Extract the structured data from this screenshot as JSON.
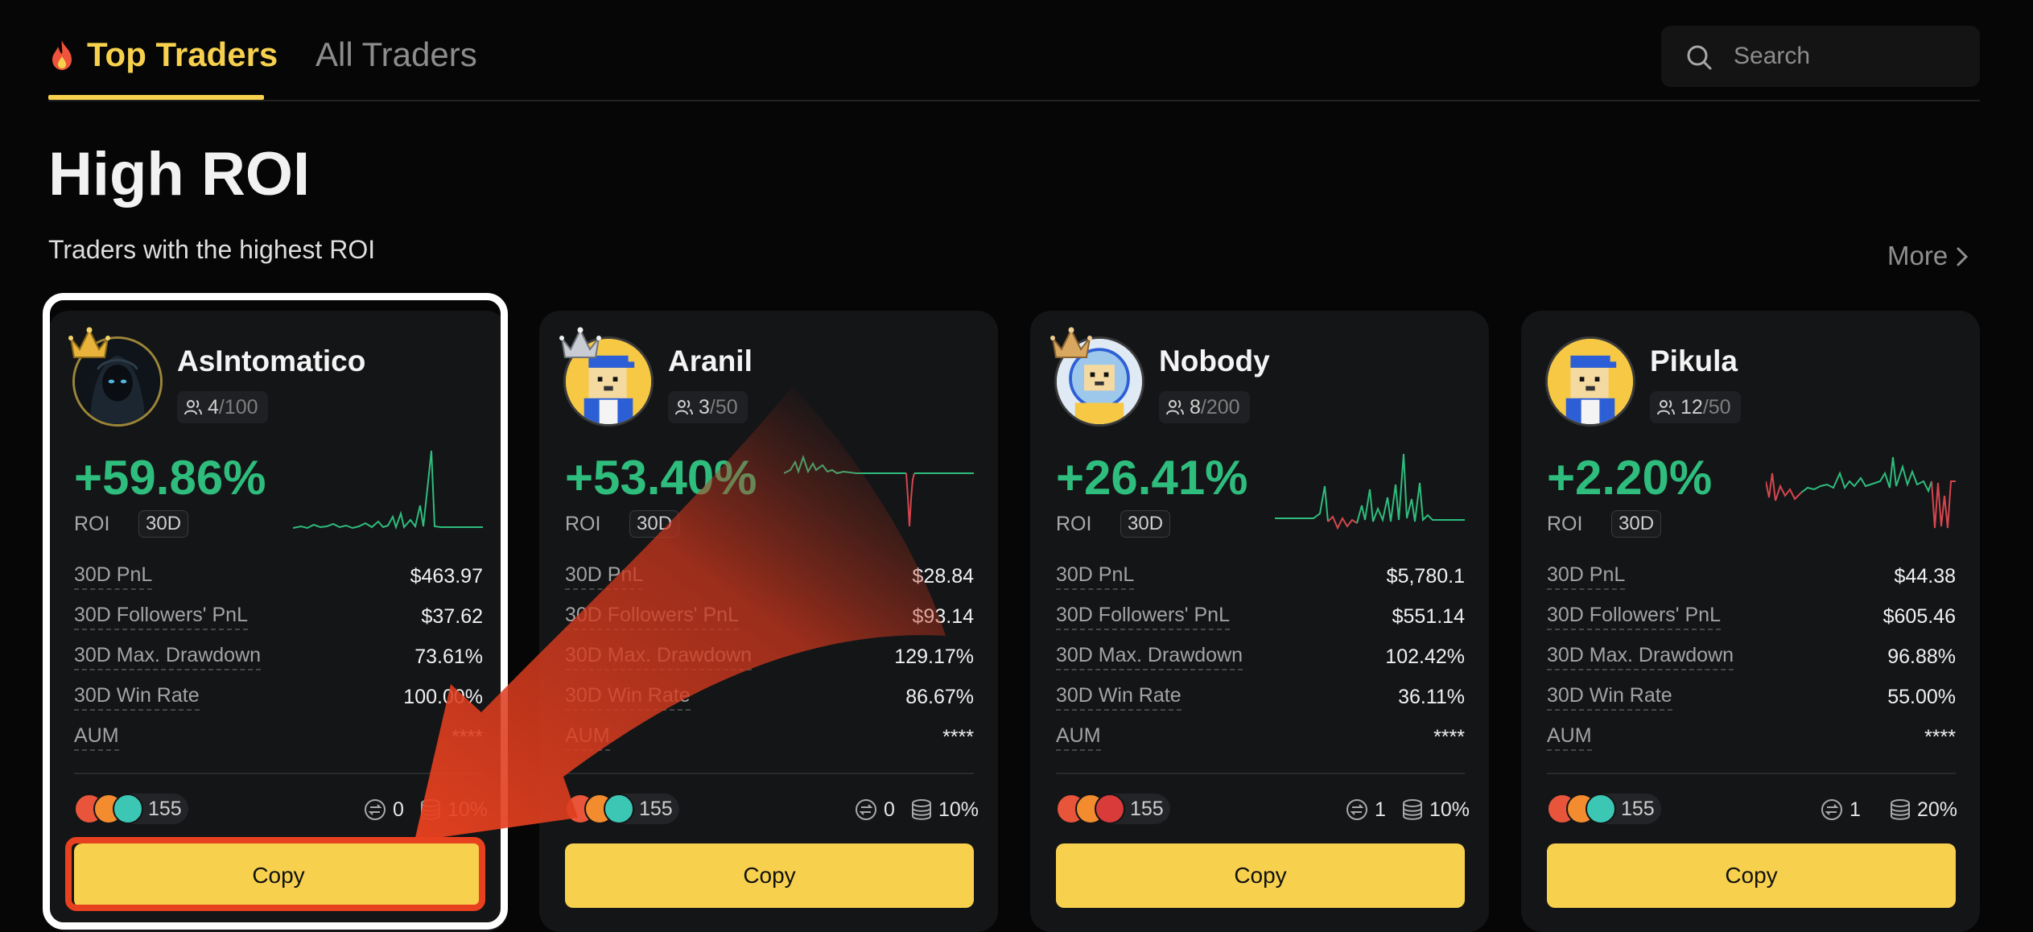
{
  "tabs": {
    "top": "Top Traders",
    "all": "All Traders"
  },
  "search": {
    "placeholder": "Search"
  },
  "section": {
    "title": "High ROI",
    "subtitle": "Traders with the highest ROI",
    "more": "More"
  },
  "colors": {
    "accent": "#f7d14e",
    "positive": "#2ebd7d",
    "negative": "#d4464e",
    "highlight": "#e8411f"
  },
  "stat_labels": [
    "30D PnL",
    "30D Followers' PnL",
    "30D Max. Drawdown",
    "30D Win Rate",
    "AUM"
  ],
  "roi_label": "ROI",
  "roi_period": "30D",
  "copy_label": "Copy",
  "cards": [
    {
      "name": "AsIntomatico",
      "followers": "4",
      "followers_max": "/100",
      "roi": "+59.86%",
      "stats": [
        "$463.97",
        "$37.62",
        "73.61%",
        "100.00%",
        "****"
      ],
      "coin_count": "155",
      "trades": "0",
      "profit_share": "10%",
      "crown": "gold",
      "avatar": "hooded-figure"
    },
    {
      "name": "Aranil",
      "followers": "3",
      "followers_max": "/50",
      "roi": "+53.40%",
      "stats": [
        "$28.84",
        "$93.14",
        "129.17%",
        "86.67%",
        "****"
      ],
      "coin_count": "155",
      "trades": "0",
      "profit_share": "10%",
      "crown": "silver",
      "avatar": "pixel-dog"
    },
    {
      "name": "Nobody",
      "followers": "8",
      "followers_max": "/200",
      "roi": "+26.41%",
      "stats": [
        "$5,780.1",
        "$551.14",
        "102.42%",
        "36.11%",
        "****"
      ],
      "coin_count": "155",
      "trades": "1",
      "profit_share": "10%",
      "crown": "bronze",
      "avatar": "pixel-dog-astronaut"
    },
    {
      "name": "Pikula",
      "followers": "12",
      "followers_max": "/50",
      "roi": "+2.20%",
      "stats": [
        "$44.38",
        "$605.46",
        "96.88%",
        "55.00%",
        "****"
      ],
      "coin_count": "155",
      "trades": "1",
      "profit_share": "20%",
      "crown": "none",
      "avatar": "pixel-dog"
    }
  ]
}
